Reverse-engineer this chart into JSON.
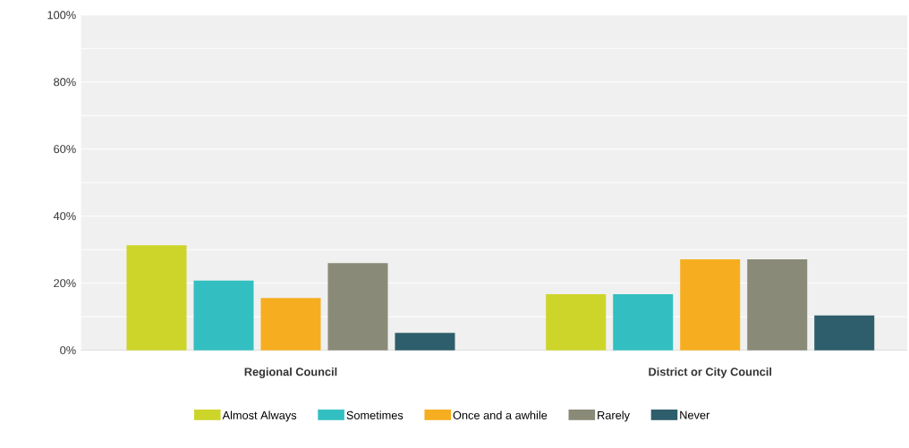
{
  "chart_data": {
    "type": "bar",
    "categories": [
      "Regional Council",
      "District or City Council"
    ],
    "series": [
      {
        "name": "Almost Always",
        "color": "#cdd52a",
        "values": [
          31.3,
          16.7
        ]
      },
      {
        "name": "Sometimes",
        "color": "#33bfc1",
        "values": [
          20.8,
          16.7
        ]
      },
      {
        "name": "Once and a awhile",
        "color": "#f6ae20",
        "values": [
          15.6,
          27.1
        ]
      },
      {
        "name": "Rarely",
        "color": "#8a8a78",
        "values": [
          26.0,
          27.1
        ]
      },
      {
        "name": "Never",
        "color": "#2e5e6b",
        "values": [
          5.2,
          10.4
        ]
      }
    ],
    "ylim": [
      0,
      100
    ],
    "yticks": [
      {
        "value": 0,
        "label": "0%"
      },
      {
        "value": 10,
        "label": null
      },
      {
        "value": 20,
        "label": "20%"
      },
      {
        "value": 30,
        "label": null
      },
      {
        "value": 40,
        "label": "40%"
      },
      {
        "value": 50,
        "label": null
      },
      {
        "value": 60,
        "label": "60%"
      },
      {
        "value": 70,
        "label": null
      },
      {
        "value": 80,
        "label": "80%"
      },
      {
        "value": 90,
        "label": null
      },
      {
        "value": 100,
        "label": "100%"
      }
    ],
    "grid": "y",
    "legend": "bottom"
  }
}
